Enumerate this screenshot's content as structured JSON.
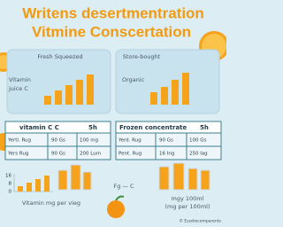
{
  "title": [
    "Writens desertmentration",
    "Vitmine Conscertation"
  ],
  "panels": [
    {
      "label": "Fresh Squeezed",
      "side_label": [
        "Vitamin",
        "juice C"
      ]
    },
    {
      "label": "Store-bought",
      "side_label": [
        "Organic"
      ]
    }
  ],
  "tables": [
    {
      "header": [
        "vitamin C C",
        "5h"
      ],
      "rows": [
        [
          "Yertl. Rug",
          "90 Gs",
          "100 mg"
        ],
        [
          "Yers Rug",
          "90 Gs",
          "200 Lum"
        ]
      ]
    },
    {
      "header": [
        "Frozen concentrate",
        "5h"
      ],
      "rows": [
        [
          "Yerd. Rug",
          "90 Gs",
          "100 Gs"
        ],
        [
          "Pent. Rug",
          "16 Ing",
          "250 lag"
        ]
      ]
    }
  ],
  "bottom": {
    "ticks": [
      "16",
      "8",
      "0"
    ],
    "chart_label": "Vitamin mg per vieg",
    "formula": "Fg — C",
    "unit": [
      "mgy 100ml",
      "(mg per 100ml)"
    ],
    "credit": "© Essdrecomparents"
  }
}
